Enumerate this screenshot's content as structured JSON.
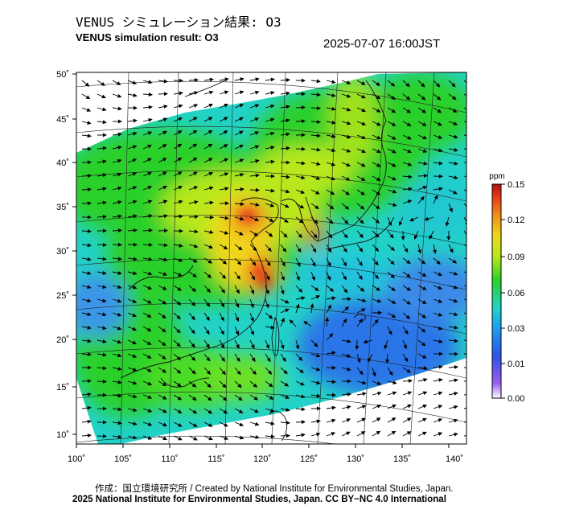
{
  "header": {
    "title_jp": "VENUS シミュレーション結果: O3",
    "title_en": "VENUS simulation result: O3",
    "timestamp": "2025-07-07 16:00JST"
  },
  "map": {
    "lon_ticks": [
      "100˚",
      "105˚",
      "110˚",
      "115˚",
      "120˚",
      "125˚",
      "130˚",
      "135˚",
      "140˚"
    ],
    "lat_ticks": [
      "50˚",
      "45˚",
      "40˚",
      "35˚",
      "30˚",
      "25˚",
      "20˚",
      "15˚",
      "10˚"
    ]
  },
  "colorbar": {
    "unit": "ppm",
    "labels": [
      "0.15",
      "0.12",
      "0.09",
      "0.06",
      "0.03",
      "0.01",
      "0.00"
    ],
    "colors": [
      "#ffffff",
      "#9a5cf0",
      "#2b55e8",
      "#1aa0f0",
      "#22d2c8",
      "#2ad02a",
      "#b8e81a",
      "#f0d81a",
      "#f08a1a",
      "#e83a1a",
      "#b01010"
    ]
  },
  "credits": {
    "line1": "作成：国立環境研究所 / Created by National Institute for Environmental Studies, Japan.",
    "line2": "2025 National Institute for Environmental Studies, Japan. CC BY−NC 4.0 International"
  }
}
